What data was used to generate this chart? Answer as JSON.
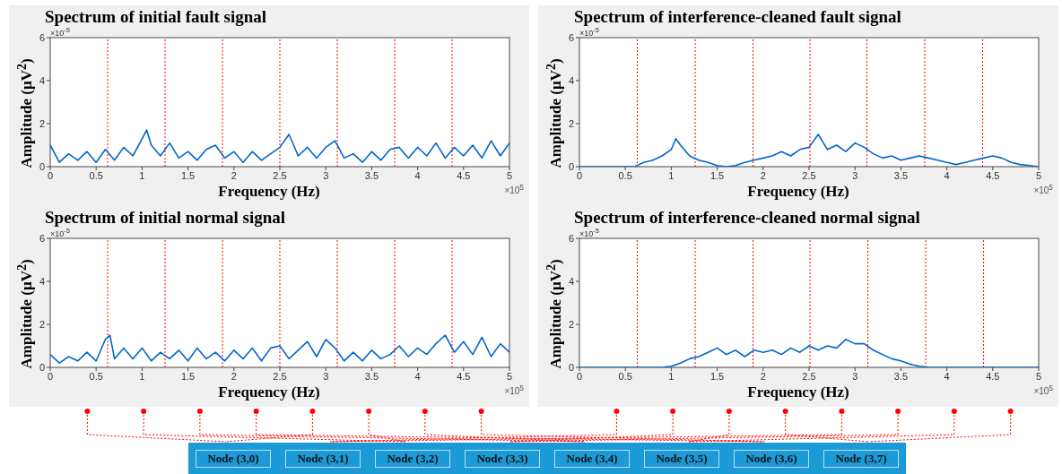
{
  "chart_data": [
    {
      "type": "line",
      "title": "Spectrum of initial fault signal",
      "xlabel": "Frequency (Hz)",
      "ylabel": "Amplitude (µV$^{2}$)",
      "annotations": [
        "×10$^{-5}$",
        "×10$^{5}$"
      ],
      "xlim": [
        0,
        5
      ],
      "xticks": [
        0,
        0.5,
        1,
        1.5,
        2,
        2.5,
        3,
        3.5,
        4,
        4.5,
        5
      ],
      "ylim": [
        0,
        6
      ],
      "yticks": [
        0,
        2,
        4,
        6
      ],
      "marker": "none",
      "line_style": "solid",
      "ref_lines": [
        {
          "axis": "x",
          "value": 0.625,
          "color": "#ff0000",
          "line_style": "dotted"
        },
        {
          "axis": "x",
          "value": 1.25,
          "color": "#ff0000",
          "line_style": "dotted"
        },
        {
          "axis": "x",
          "value": 1.875,
          "color": "#ff0000",
          "line_style": "dotted"
        },
        {
          "axis": "x",
          "value": 2.5,
          "color": "#ff0000",
          "line_style": "dotted"
        },
        {
          "axis": "x",
          "value": 3.125,
          "color": "#ff0000",
          "line_style": "dotted"
        },
        {
          "axis": "x",
          "value": 3.75,
          "color": "#ff0000",
          "line_style": "dotted"
        },
        {
          "axis": "x",
          "value": 4.375,
          "color": "#ff0000",
          "line_style": "dotted"
        }
      ],
      "x": [
        0,
        0.1,
        0.2,
        0.3,
        0.4,
        0.5,
        0.6,
        0.7,
        0.8,
        0.9,
        1,
        1.05,
        1.1,
        1.2,
        1.3,
        1.4,
        1.5,
        1.6,
        1.7,
        1.8,
        1.9,
        2,
        2.1,
        2.2,
        2.3,
        2.4,
        2.5,
        2.6,
        2.7,
        2.8,
        2.9,
        3,
        3.1,
        3.2,
        3.3,
        3.4,
        3.5,
        3.6,
        3.7,
        3.8,
        3.9,
        4,
        4.1,
        4.2,
        4.3,
        4.4,
        4.5,
        4.6,
        4.7,
        4.8,
        4.9,
        5
      ],
      "series": [
        {
          "color": "#0066cc",
          "values": [
            1.0,
            0.2,
            0.6,
            0.3,
            0.7,
            0.2,
            0.8,
            0.3,
            0.9,
            0.5,
            1.3,
            1.7,
            1.0,
            0.5,
            1.1,
            0.4,
            0.7,
            0.3,
            0.8,
            1.0,
            0.4,
            0.7,
            0.2,
            0.7,
            0.3,
            0.6,
            0.9,
            1.5,
            0.5,
            0.9,
            0.4,
            0.9,
            1.2,
            0.4,
            0.6,
            0.2,
            0.7,
            0.3,
            0.8,
            0.9,
            0.4,
            0.9,
            0.5,
            1.1,
            0.4,
            0.9,
            0.5,
            1.0,
            0.4,
            1.2,
            0.5,
            1.1
          ]
        }
      ]
    },
    {
      "type": "line",
      "title": "Spectrum of interference-cleaned fault signal",
      "xlabel": "Frequency (Hz)",
      "ylabel": "Amplitude (µV$^{2}$)",
      "annotations": [
        "×10$^{-5}$",
        "×10$^{5}$"
      ],
      "xlim": [
        0,
        5
      ],
      "xticks": [
        0,
        0.5,
        1,
        1.5,
        2,
        2.5,
        3,
        3.5,
        4,
        4.5,
        5
      ],
      "ylim": [
        0,
        6
      ],
      "yticks": [
        0,
        2,
        4,
        6
      ],
      "marker": "none",
      "line_style": "solid",
      "ref_lines": [
        {
          "axis": "x",
          "value": 0.63,
          "color": "#ff0000",
          "line_style": "dotted"
        },
        {
          "axis": "x",
          "value": 1.26,
          "color": "#ff0000",
          "line_style": "dotted"
        },
        {
          "axis": "x",
          "value": 1.89,
          "color": "#ff0000",
          "line_style": "dotted"
        },
        {
          "axis": "x",
          "value": 2.51,
          "color": "#ff0000",
          "line_style": "dotted"
        },
        {
          "axis": "x",
          "value": 3.13,
          "color": "#ff0000",
          "line_style": "dotted"
        },
        {
          "axis": "x",
          "value": 3.76,
          "color": "#ff0000",
          "line_style": "dotted"
        },
        {
          "axis": "x",
          "value": 4.39,
          "color": "#ff0000",
          "line_style": "dotted"
        }
      ],
      "x": [
        0,
        0.3,
        0.6,
        0.65,
        0.7,
        0.8,
        0.9,
        1,
        1.05,
        1.1,
        1.2,
        1.3,
        1.4,
        1.5,
        1.6,
        1.7,
        1.8,
        1.9,
        2,
        2.1,
        2.2,
        2.3,
        2.4,
        2.5,
        2.6,
        2.7,
        2.8,
        2.9,
        3,
        3.1,
        3.2,
        3.3,
        3.4,
        3.5,
        3.6,
        3.7,
        3.8,
        3.9,
        4,
        4.1,
        4.2,
        4.3,
        4.4,
        4.5,
        4.6,
        4.7,
        4.8,
        4.9,
        5
      ],
      "series": [
        {
          "color": "#0066cc",
          "values": [
            0,
            0,
            0,
            0.1,
            0.2,
            0.3,
            0.5,
            0.8,
            1.3,
            1.0,
            0.5,
            0.3,
            0.2,
            0.05,
            0,
            0.05,
            0.2,
            0.3,
            0.4,
            0.5,
            0.7,
            0.5,
            0.8,
            0.9,
            1.5,
            0.8,
            1.0,
            0.7,
            1.1,
            0.9,
            0.6,
            0.4,
            0.5,
            0.3,
            0.4,
            0.5,
            0.4,
            0.3,
            0.2,
            0.1,
            0.2,
            0.3,
            0.4,
            0.5,
            0.4,
            0.2,
            0.1,
            0.05,
            0
          ]
        }
      ]
    },
    {
      "type": "line",
      "title": "Spectrum of initial normal signal",
      "xlabel": "Frequency (Hz)",
      "ylabel": "Amplitude (µV$^{2}$)",
      "annotations": [
        "×10$^{-5}$",
        "×10$^{5}$"
      ],
      "xlim": [
        0,
        5
      ],
      "xticks": [
        0,
        0.5,
        1,
        1.5,
        2,
        2.5,
        3,
        3.5,
        4,
        4.5,
        5
      ],
      "ylim": [
        0,
        6
      ],
      "yticks": [
        0,
        2,
        4,
        6
      ],
      "marker": "none",
      "line_style": "solid",
      "ref_lines": [
        {
          "axis": "x",
          "value": 0.625,
          "color": "#ff0000",
          "line_style": "dotted"
        },
        {
          "axis": "x",
          "value": 1.25,
          "color": "#ff0000",
          "line_style": "dotted"
        },
        {
          "axis": "x",
          "value": 1.875,
          "color": "#ff0000",
          "line_style": "dotted"
        },
        {
          "axis": "x",
          "value": 2.5,
          "color": "#ff0000",
          "line_style": "dotted"
        },
        {
          "axis": "x",
          "value": 3.125,
          "color": "#ff0000",
          "line_style": "dotted"
        },
        {
          "axis": "x",
          "value": 3.75,
          "color": "#ff0000",
          "line_style": "dotted"
        },
        {
          "axis": "x",
          "value": 4.375,
          "color": "#ff0000",
          "line_style": "dotted"
        }
      ],
      "x": [
        0,
        0.1,
        0.2,
        0.3,
        0.4,
        0.5,
        0.6,
        0.65,
        0.7,
        0.8,
        0.9,
        1,
        1.1,
        1.2,
        1.3,
        1.4,
        1.5,
        1.6,
        1.7,
        1.8,
        1.9,
        2,
        2.1,
        2.2,
        2.3,
        2.4,
        2.5,
        2.6,
        2.7,
        2.8,
        2.9,
        3,
        3.1,
        3.2,
        3.3,
        3.4,
        3.5,
        3.6,
        3.7,
        3.8,
        3.9,
        4,
        4.1,
        4.2,
        4.3,
        4.4,
        4.5,
        4.6,
        4.7,
        4.8,
        4.9,
        5
      ],
      "series": [
        {
          "color": "#0066cc",
          "values": [
            0.6,
            0.2,
            0.5,
            0.3,
            0.7,
            0.3,
            1.3,
            1.5,
            0.4,
            0.9,
            0.4,
            0.9,
            0.3,
            0.7,
            0.4,
            0.8,
            0.3,
            0.9,
            0.4,
            0.7,
            0.3,
            0.8,
            0.4,
            0.9,
            0.3,
            0.9,
            1.0,
            0.4,
            0.8,
            1.2,
            0.5,
            1.3,
            0.9,
            0.3,
            0.7,
            0.3,
            0.8,
            0.4,
            0.6,
            1.0,
            0.5,
            0.9,
            0.6,
            1.1,
            1.5,
            0.7,
            1.2,
            0.6,
            1.4,
            0.5,
            1.1,
            0.7
          ]
        }
      ]
    },
    {
      "type": "line",
      "title": "Spectrum of interference-cleaned normal signal",
      "xlabel": "Frequency (Hz)",
      "ylabel": "Amplitude (µV$^{2}$)",
      "annotations": [
        "×10$^{-5}$",
        "×10$^{5}$"
      ],
      "xlim": [
        0,
        5
      ],
      "xticks": [
        0,
        0.5,
        1,
        1.5,
        2,
        2.5,
        3,
        3.5,
        4,
        4.5,
        5
      ],
      "ylim": [
        0,
        6
      ],
      "yticks": [
        0,
        2,
        4,
        6
      ],
      "marker": "none",
      "line_style": "solid",
      "ref_lines": [
        {
          "axis": "x",
          "value": 0.63,
          "color": "#ff0000",
          "line_style": "dotted"
        },
        {
          "axis": "x",
          "value": 1.26,
          "color": "#ff0000",
          "line_style": "dotted"
        },
        {
          "axis": "x",
          "value": 1.89,
          "color": "#ff0000",
          "line_style": "dotted"
        },
        {
          "axis": "x",
          "value": 2.51,
          "color": "#ff0000",
          "line_style": "dotted"
        },
        {
          "axis": "x",
          "value": 3.14,
          "color": "#ff0000",
          "line_style": "dotted"
        },
        {
          "axis": "x",
          "value": 3.77,
          "color": "#ff0000",
          "line_style": "dotted"
        },
        {
          "axis": "x",
          "value": 4.4,
          "color": "#ff0000",
          "line_style": "dotted"
        }
      ],
      "x": [
        0,
        0.5,
        0.9,
        1,
        1.1,
        1.2,
        1.3,
        1.4,
        1.5,
        1.6,
        1.7,
        1.8,
        1.9,
        2,
        2.1,
        2.2,
        2.3,
        2.4,
        2.5,
        2.6,
        2.7,
        2.8,
        2.9,
        3,
        3.1,
        3.2,
        3.3,
        3.4,
        3.5,
        3.6,
        3.7,
        3.8,
        4.5,
        5
      ],
      "series": [
        {
          "color": "#0066cc",
          "values": [
            0,
            0,
            0,
            0.05,
            0.2,
            0.4,
            0.5,
            0.7,
            0.9,
            0.6,
            0.8,
            0.5,
            0.8,
            0.7,
            0.8,
            0.6,
            0.9,
            0.7,
            1.0,
            0.8,
            1.0,
            0.9,
            1.3,
            1.1,
            1.1,
            0.8,
            0.6,
            0.4,
            0.3,
            0.15,
            0.05,
            0,
            0,
            0
          ]
        }
      ]
    },
    {
      "type": "other",
      "categories": [
        "Node (3,0)",
        "Node (3,1)",
        "Node (3,2)",
        "Node (3,3)",
        "Node (3,4)",
        "Node (3,5)",
        "Node (3,6)",
        "Node (3,7)"
      ]
    }
  ]
}
